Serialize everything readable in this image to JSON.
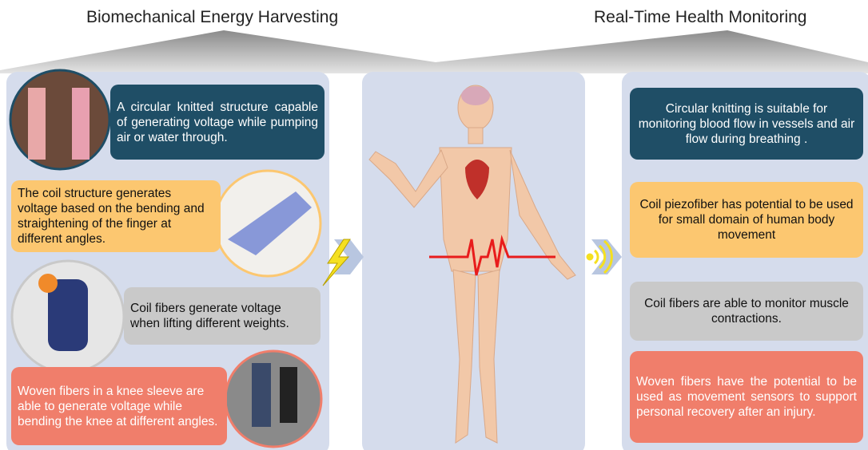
{
  "header": {
    "left_title": "Biomechanical Energy Harvesting",
    "right_title": "Real-Time Health Monitoring"
  },
  "left": {
    "items": [
      {
        "text": "A circular knitted structure capable of generating voltage while pumping air or water through."
      },
      {
        "text": "The coil structure generates voltage based on the bending and straightening of the finger at different angles."
      },
      {
        "text": "Coil fibers generate voltage when lifting different weights."
      },
      {
        "text": "Woven fibers in a knee sleeve are able to generate voltage while bending the knee at different angles."
      }
    ]
  },
  "right": {
    "items": [
      {
        "text": "Circular knitting is suitable for monitoring blood flow in vessels and air flow during breathing ."
      },
      {
        "text": "Coil piezofiber has potential to be used for small domain of human body movement"
      },
      {
        "text": "Coil fibers are able to monitor muscle contractions."
      },
      {
        "text": "Woven fibers have the potential to be used as movement sensors to support personal recovery after an injury."
      }
    ]
  }
}
